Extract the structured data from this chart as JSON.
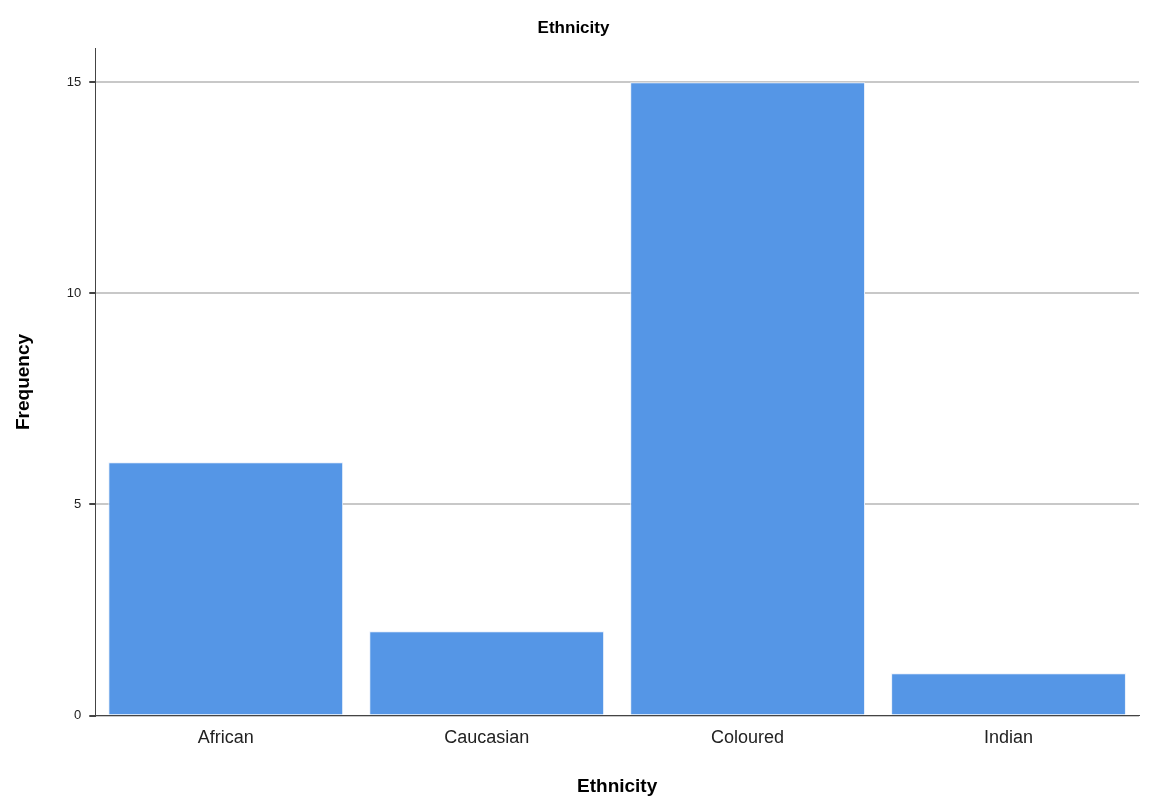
{
  "chart_data": {
    "type": "bar",
    "title": "Ethnicity",
    "xlabel": "Ethnicity",
    "ylabel": "Frequency",
    "categories": [
      "African",
      "Caucasian",
      "Coloured",
      "Indian"
    ],
    "values": [
      6,
      2,
      15,
      1
    ],
    "color": "#5596e6",
    "ylim": [
      0,
      15.8
    ],
    "yticks": [
      0,
      5,
      10,
      15
    ],
    "grid": "y",
    "legend": false
  }
}
